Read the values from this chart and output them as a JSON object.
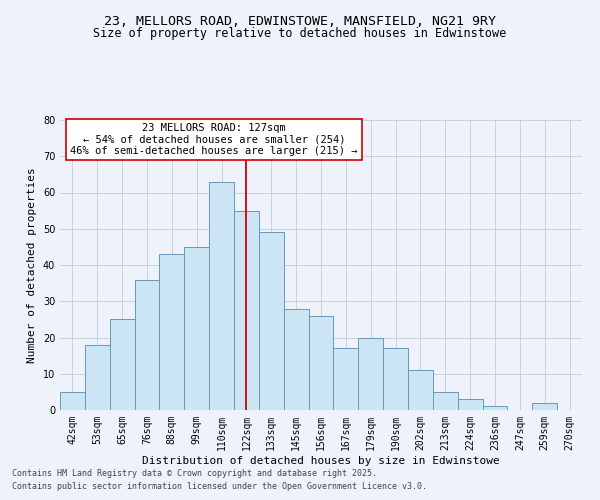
{
  "title_line1": "23, MELLORS ROAD, EDWINSTOWE, MANSFIELD, NG21 9RY",
  "title_line2": "Size of property relative to detached houses in Edwinstowe",
  "xlabel": "Distribution of detached houses by size in Edwinstowe",
  "ylabel": "Number of detached properties",
  "categories": [
    "42sqm",
    "53sqm",
    "65sqm",
    "76sqm",
    "88sqm",
    "99sqm",
    "110sqm",
    "122sqm",
    "133sqm",
    "145sqm",
    "156sqm",
    "167sqm",
    "179sqm",
    "190sqm",
    "202sqm",
    "213sqm",
    "224sqm",
    "236sqm",
    "247sqm",
    "259sqm",
    "270sqm"
  ],
  "values": [
    5,
    18,
    25,
    36,
    43,
    45,
    63,
    55,
    49,
    28,
    26,
    17,
    20,
    17,
    11,
    5,
    3,
    1,
    0,
    2,
    0
  ],
  "bar_color": "#cce5f5",
  "bar_edge_color": "#6699bb",
  "redline_x": 7.0,
  "ylim": [
    0,
    80
  ],
  "yticks": [
    0,
    10,
    20,
    30,
    40,
    50,
    60,
    70,
    80
  ],
  "annotation_text": "23 MELLORS ROAD: 127sqm\n← 54% of detached houses are smaller (254)\n46% of semi-detached houses are larger (215) →",
  "bg_color": "#eef2fb",
  "grid_color": "#c0ccdd",
  "footer_line1": "Contains HM Land Registry data © Crown copyright and database right 2025.",
  "footer_line2": "Contains public sector information licensed under the Open Government Licence v3.0.",
  "title_fontsize": 9.5,
  "subtitle_fontsize": 8.5,
  "tick_fontsize": 7,
  "ylabel_fontsize": 8,
  "xlabel_fontsize": 8,
  "annotation_fontsize": 7.5,
  "footer_fontsize": 6
}
